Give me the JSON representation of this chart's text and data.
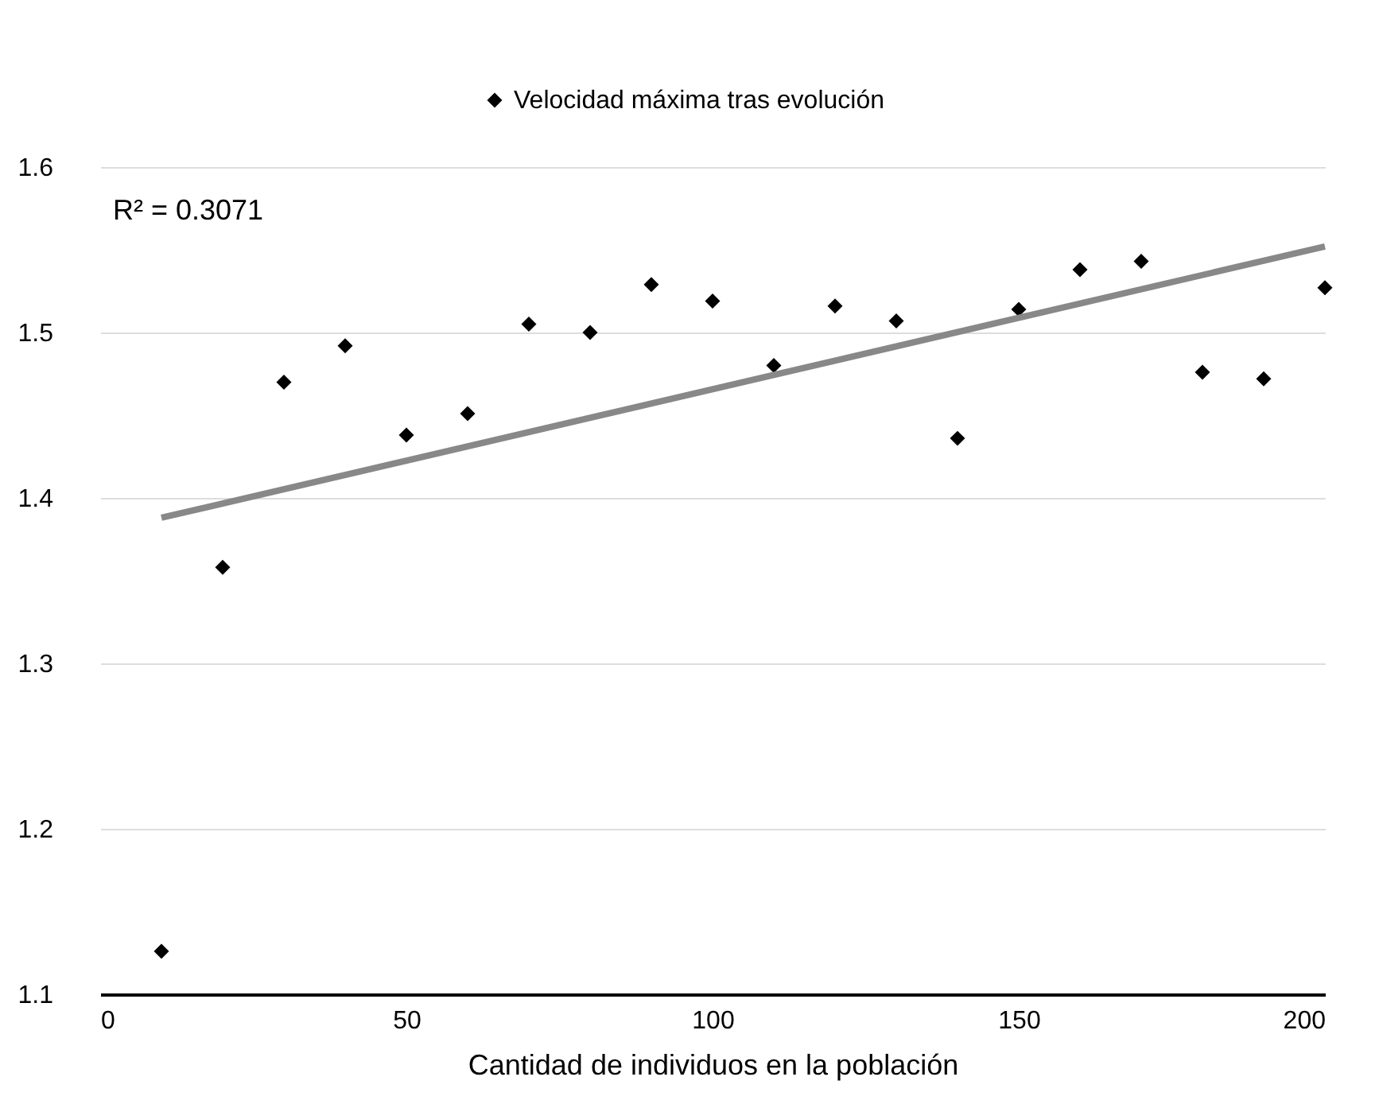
{
  "chart_data": {
    "type": "scatter",
    "xlabel": "Cantidad de individuos en la población",
    "x": [
      10,
      20,
      30,
      40,
      50,
      60,
      70,
      80,
      90,
      100,
      110,
      120,
      130,
      140,
      150,
      160,
      170,
      180,
      190,
      200
    ],
    "series": [
      {
        "name": "Velocidad máxima tras evolución",
        "color": "#000000",
        "marker": "diamond",
        "values": [
          1.126,
          1.358,
          1.47,
          1.492,
          1.438,
          1.451,
          1.505,
          1.5,
          1.529,
          1.519,
          1.48,
          1.516,
          1.507,
          1.436,
          1.514,
          1.538,
          1.543,
          1.476,
          1.472,
          1.527
        ]
      },
      {
        "type": "line",
        "color": "#888888",
        "line_style": "solid",
        "x": [
          10,
          200
        ],
        "values": [
          1.388,
          1.552
        ]
      }
    ],
    "annotations": [
      "R² = 0.3071"
    ],
    "xlim": [
      0,
      200
    ],
    "xticks": [
      0,
      50,
      100,
      150,
      200
    ],
    "ylim": [
      1.1,
      1.6
    ],
    "yticks": [
      1.1,
      1.2,
      1.3,
      1.4,
      1.5,
      1.6
    ],
    "grid": "y",
    "legend": "top"
  }
}
